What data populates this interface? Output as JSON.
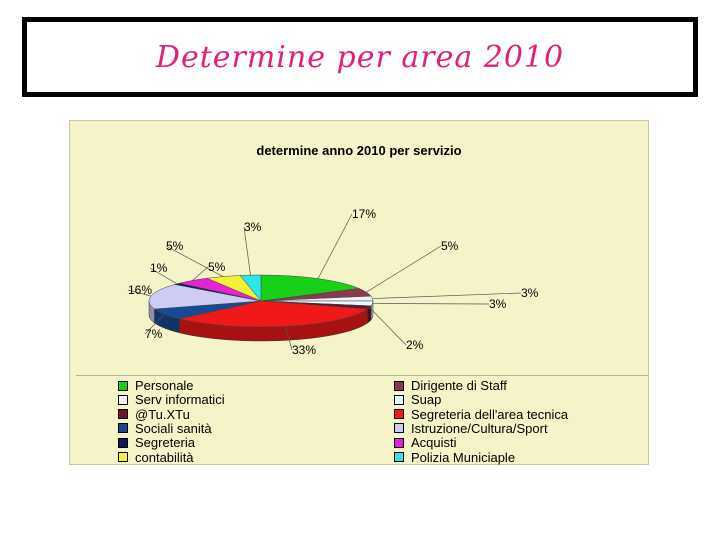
{
  "slide": {
    "title": "Determine per area 2010"
  },
  "chart_data": {
    "type": "pie",
    "title": "determine anno 2010 per servizio",
    "slices": [
      {
        "label": "Personale",
        "value": 17,
        "display": "17%",
        "color": "#19d019"
      },
      {
        "label": "Dirigente di Staff",
        "value": 5,
        "display": "5%",
        "color": "#8a3a4e"
      },
      {
        "label": "Serv informatici",
        "value": 3,
        "display": "3%",
        "color": "#f2f2f2"
      },
      {
        "label": "Suap",
        "value": 3,
        "display": "3%",
        "color": "#e6fbff"
      },
      {
        "label": "@Tu.XTu",
        "value": 2,
        "display": "2%",
        "color": "#6e1030"
      },
      {
        "label": "Segreteria dell'area tecnica",
        "value": 33,
        "display": "33%",
        "color": "#f01818"
      },
      {
        "label": "Sociali sanità",
        "value": 7,
        "display": "7%",
        "color": "#164a92"
      },
      {
        "label": "Istruzione/Cultura/Sport",
        "value": 16,
        "display": "16%",
        "color": "#ccccf4"
      },
      {
        "label": "Segreteria",
        "value": 1,
        "display": "1%",
        "color": "#0d1a5c"
      },
      {
        "label": "Acquisti",
        "value": 5,
        "display": "5%",
        "color": "#e622d6"
      },
      {
        "label": "contabilità",
        "value": 5,
        "display": "5%",
        "color": "#f4f036"
      },
      {
        "label": "Polizia Municiaple",
        "value": 3,
        "display": "3%",
        "color": "#2ce6e6"
      }
    ],
    "legend_position": "bottom"
  },
  "legend": {
    "left": [
      {
        "label": "Personale",
        "color": "#19d019"
      },
      {
        "label": "Serv informatici",
        "color": "#f2f2f2"
      },
      {
        "label": "@Tu.XTu",
        "color": "#6e1030"
      },
      {
        "label": "Sociali sanità",
        "color": "#164a92"
      },
      {
        "label": "Segreteria",
        "color": "#0d1a5c"
      },
      {
        "label": "contabilità",
        "color": "#f4f036"
      }
    ],
    "right": [
      {
        "label": "Dirigente di Staff",
        "color": "#8a3a4e"
      },
      {
        "label": "Suap",
        "color": "#e6fbff"
      },
      {
        "label": "Segreteria dell'area tecnica",
        "color": "#f01818"
      },
      {
        "label": "Istruzione/Cultura/Sport",
        "color": "#ccccf4"
      },
      {
        "label": "Acquisti",
        "color": "#e622d6"
      },
      {
        "label": "Polizia Municiaple",
        "color": "#2ce6e6"
      }
    ]
  }
}
